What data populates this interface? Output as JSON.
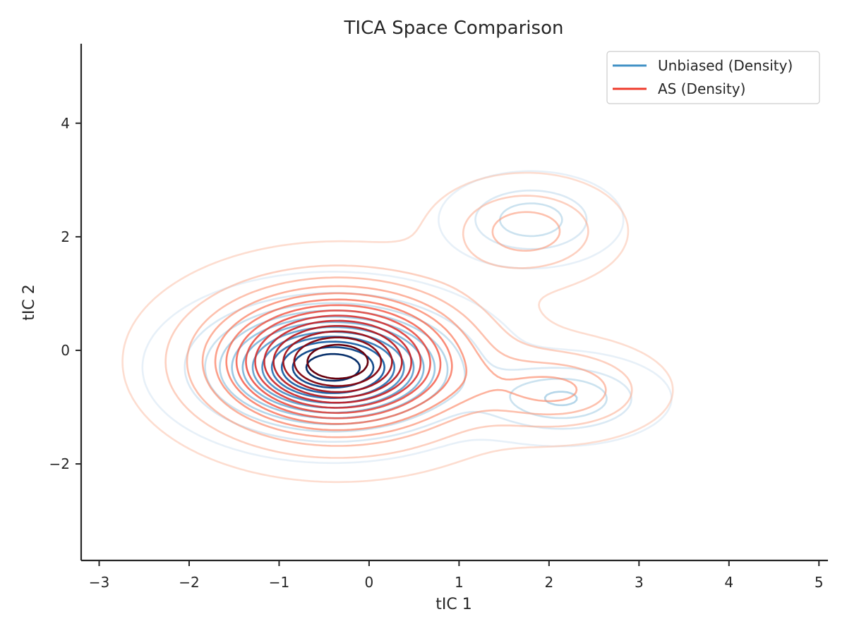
{
  "chart_data": {
    "type": "contour",
    "title": "TICA Space Comparison",
    "xlabel": "tIC 1",
    "ylabel": "tIC 2",
    "xlim": [
      -3.2,
      5.1
    ],
    "ylim": [
      -3.7,
      5.4
    ],
    "xticks": [
      -3,
      -2,
      -1,
      0,
      1,
      2,
      3,
      4,
      5
    ],
    "yticks": [
      -2,
      0,
      2,
      4
    ],
    "xtick_labels": [
      "−3",
      "−2",
      "−1",
      "0",
      "1",
      "2",
      "3",
      "4",
      "5"
    ],
    "ytick_labels": [
      "−2",
      "0",
      "2",
      "4"
    ],
    "grid": false,
    "legend_position": "upper right",
    "series": [
      {
        "name": "Unbiased (Density)",
        "color": "#4292c6",
        "colormap": "Blues",
        "level_count": 12,
        "components": [
          {
            "weight": 0.82,
            "center": [
              -0.4,
              -0.3
            ],
            "sigma": [
              0.78,
              0.62
            ]
          },
          {
            "weight": 0.1,
            "center": [
              2.15,
              -0.85
            ],
            "sigma": [
              0.55,
              0.38
            ]
          },
          {
            "weight": 0.08,
            "center": [
              1.8,
              2.3
            ],
            "sigma": [
              0.48,
              0.4
            ]
          }
        ]
      },
      {
        "name": "AS (Density)",
        "color": "#ef3b2c",
        "colormap": "Reds",
        "level_count": 14,
        "components": [
          {
            "weight": 0.85,
            "center": [
              -0.35,
              -0.2
            ],
            "sigma": [
              0.88,
              0.78
            ]
          },
          {
            "weight": 0.08,
            "center": [
              2.1,
              -0.7
            ],
            "sigma": [
              0.6,
              0.45
            ]
          },
          {
            "weight": 0.07,
            "center": [
              1.75,
              2.1
            ],
            "sigma": [
              0.55,
              0.5
            ]
          }
        ]
      }
    ]
  }
}
